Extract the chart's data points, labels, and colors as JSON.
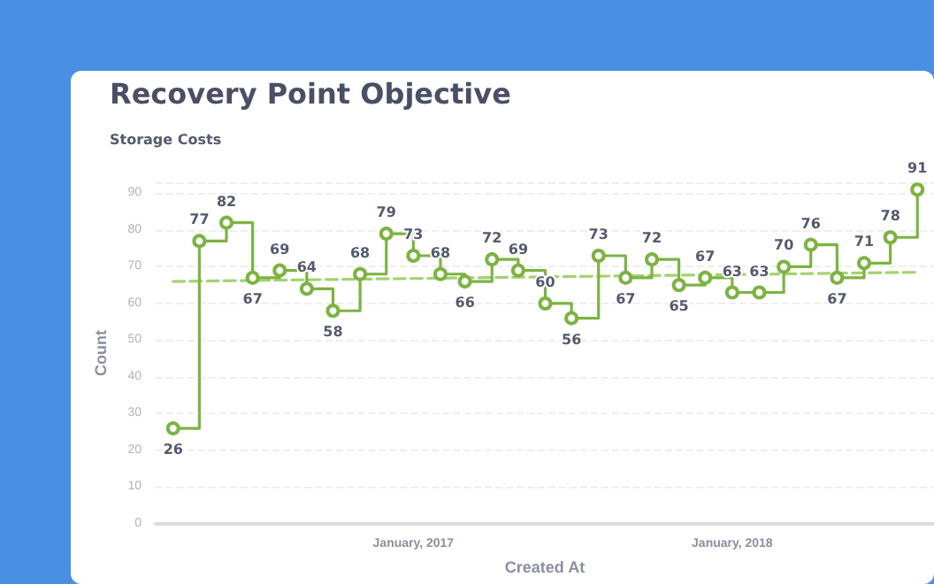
{
  "chart_data": {
    "type": "step",
    "title": "Recovery Point Objective",
    "subtitle": "Storage Costs",
    "xlabel": "Created At",
    "ylabel": "Count",
    "series": [
      {
        "color": "#7cb342",
        "marker": "circle",
        "x": [
          "2016-04",
          "2016-05",
          "2016-06",
          "2016-07",
          "2016-08",
          "2016-09",
          "2016-10",
          "2016-11",
          "2016-12",
          "2017-01",
          "2017-02",
          "2017-03",
          "2017-04",
          "2017-05",
          "2017-06",
          "2017-07",
          "2017-08",
          "2017-09",
          "2017-10",
          "2017-11",
          "2017-12",
          "2018-01",
          "2018-02",
          "2018-03",
          "2018-04",
          "2018-05",
          "2018-06",
          "2018-07",
          "2018-08"
        ],
        "values": [
          26,
          77,
          82,
          67,
          69,
          64,
          58,
          68,
          79,
          73,
          68,
          66,
          72,
          69,
          60,
          56,
          73,
          67,
          72,
          65,
          67,
          63,
          63,
          70,
          76,
          67,
          71,
          78,
          91
        ],
        "value_labels": [
          "26",
          "77",
          "82",
          "67",
          "69",
          "64",
          "58",
          "68",
          "79",
          "73",
          "68",
          "66",
          "72",
          "69",
          "60",
          "56",
          "73",
          "67",
          "72",
          "65",
          "67",
          "63",
          "63",
          "70",
          "76",
          "67",
          "71",
          "78",
          "91"
        ]
      },
      {
        "type": "line",
        "color": "#a5d16f",
        "line_style": "dashed",
        "marker": "none",
        "x": [
          "2016-04",
          "2018-08"
        ],
        "values": [
          66,
          68.5
        ]
      }
    ],
    "xlim": [
      "2016-03-12",
      "2018-08-20"
    ],
    "ylim": [
      0,
      93
    ],
    "yticks": [
      0,
      10,
      20,
      30,
      40,
      50,
      60,
      70,
      80,
      90,
      {
        "value": 93,
        "label": null
      }
    ],
    "xticks": [
      {
        "value": "2017-01",
        "label": "January, 2017"
      },
      {
        "value": "2018-01",
        "label": "January, 2018"
      }
    ],
    "grid": "y"
  }
}
